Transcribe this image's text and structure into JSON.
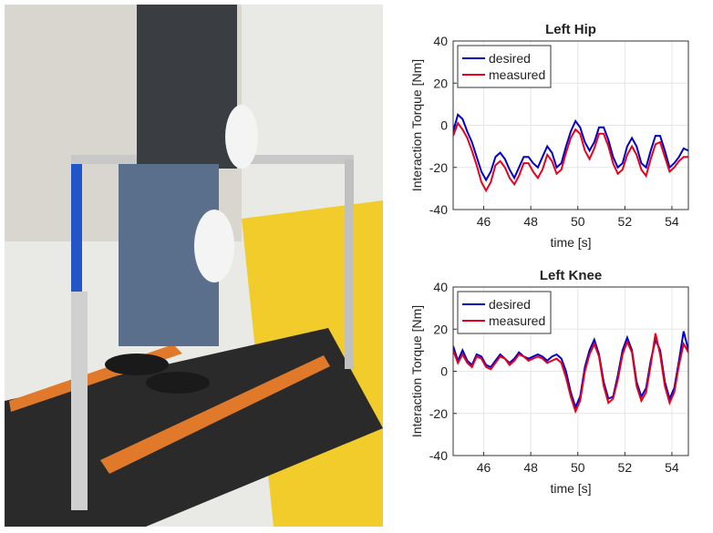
{
  "chart_data": [
    {
      "type": "line",
      "title": "Left Hip",
      "x_label": "time [s]",
      "y_label": "Interaction Torque [Nm]",
      "x": [
        44.7,
        44.9,
        45.1,
        45.3,
        45.5,
        45.7,
        45.9,
        46.1,
        46.3,
        46.5,
        46.7,
        46.9,
        47.1,
        47.3,
        47.5,
        47.7,
        47.9,
        48.1,
        48.3,
        48.5,
        48.7,
        48.9,
        49.1,
        49.3,
        49.5,
        49.7,
        49.9,
        50.1,
        50.3,
        50.5,
        50.7,
        50.9,
        51.1,
        51.3,
        51.5,
        51.7,
        51.9,
        52.1,
        52.3,
        52.5,
        52.7,
        52.9,
        53.1,
        53.3,
        53.5,
        53.7,
        53.9,
        54.1,
        54.3,
        54.5,
        54.7
      ],
      "series": [
        {
          "name": "desired",
          "color": "#0000c8",
          "values": [
            -3,
            5,
            3,
            -3,
            -8,
            -15,
            -22,
            -26,
            -22,
            -15,
            -13,
            -16,
            -21,
            -25,
            -20,
            -15,
            -15,
            -18,
            -20,
            -15,
            -10,
            -13,
            -20,
            -18,
            -10,
            -3,
            2,
            -1,
            -8,
            -12,
            -8,
            -1,
            -1,
            -7,
            -15,
            -20,
            -18,
            -10,
            -6,
            -10,
            -18,
            -20,
            -12,
            -5,
            -5,
            -12,
            -20,
            -18,
            -15,
            -11,
            -12
          ]
        },
        {
          "name": "measured",
          "color": "#e8001c",
          "values": [
            -5,
            1,
            -2,
            -6,
            -12,
            -19,
            -27,
            -31,
            -27,
            -19,
            -17,
            -20,
            -25,
            -28,
            -24,
            -18,
            -18,
            -22,
            -25,
            -21,
            -14,
            -17,
            -23,
            -21,
            -13,
            -6,
            -2,
            -4,
            -12,
            -16,
            -11,
            -4,
            -4,
            -10,
            -18,
            -23,
            -21,
            -14,
            -10,
            -14,
            -21,
            -24,
            -16,
            -9,
            -8,
            -15,
            -22,
            -20,
            -17,
            -15,
            -15
          ]
        }
      ],
      "xlim": [
        44.7,
        54.7
      ],
      "xticks": [
        46,
        48,
        50,
        52,
        54
      ],
      "ylim": [
        -40,
        40
      ],
      "yticks": [
        -40,
        -20,
        0,
        20,
        40
      ],
      "grid": true,
      "legend": "upper left"
    },
    {
      "type": "line",
      "title": "Left Knee",
      "x_label": "time [s]",
      "y_label": "Interaction Torque [Nm]",
      "x": [
        44.7,
        44.9,
        45.1,
        45.3,
        45.5,
        45.7,
        45.9,
        46.1,
        46.3,
        46.5,
        46.7,
        46.9,
        47.1,
        47.3,
        47.5,
        47.7,
        47.9,
        48.1,
        48.3,
        48.5,
        48.7,
        48.9,
        49.1,
        49.3,
        49.5,
        49.7,
        49.9,
        50.1,
        50.3,
        50.5,
        50.7,
        50.9,
        51.1,
        51.3,
        51.5,
        51.7,
        51.9,
        52.1,
        52.3,
        52.5,
        52.7,
        52.9,
        53.1,
        53.3,
        53.5,
        53.7,
        53.9,
        54.1,
        54.3,
        54.5,
        54.7
      ],
      "series": [
        {
          "name": "desired",
          "color": "#0000c8",
          "values": [
            12,
            5,
            10,
            5,
            3,
            8,
            7,
            3,
            2,
            5,
            8,
            6,
            4,
            6,
            9,
            7,
            6,
            7,
            8,
            7,
            5,
            7,
            8,
            6,
            0,
            -10,
            -17,
            -12,
            2,
            10,
            15,
            8,
            -5,
            -13,
            -12,
            -2,
            10,
            16,
            10,
            -5,
            -12,
            -8,
            5,
            15,
            10,
            -5,
            -13,
            -8,
            5,
            19,
            10
          ]
        },
        {
          "name": "measured",
          "color": "#e8001c",
          "values": [
            10,
            4,
            8,
            4,
            2,
            7,
            6,
            2,
            1,
            4,
            7,
            6,
            3,
            5,
            8,
            7,
            5,
            6,
            7,
            6,
            4,
            5,
            6,
            4,
            -3,
            -12,
            -19,
            -14,
            0,
            8,
            13,
            7,
            -7,
            -15,
            -13,
            -4,
            8,
            14,
            9,
            -7,
            -14,
            -10,
            3,
            18,
            8,
            -7,
            -15,
            -10,
            3,
            13,
            9
          ]
        }
      ],
      "xlim": [
        44.7,
        54.7
      ],
      "xticks": [
        46,
        48,
        50,
        52,
        54
      ],
      "ylim": [
        -40,
        40
      ],
      "yticks": [
        -40,
        -20,
        0,
        20,
        40
      ],
      "grid": true,
      "legend": "upper left"
    }
  ]
}
